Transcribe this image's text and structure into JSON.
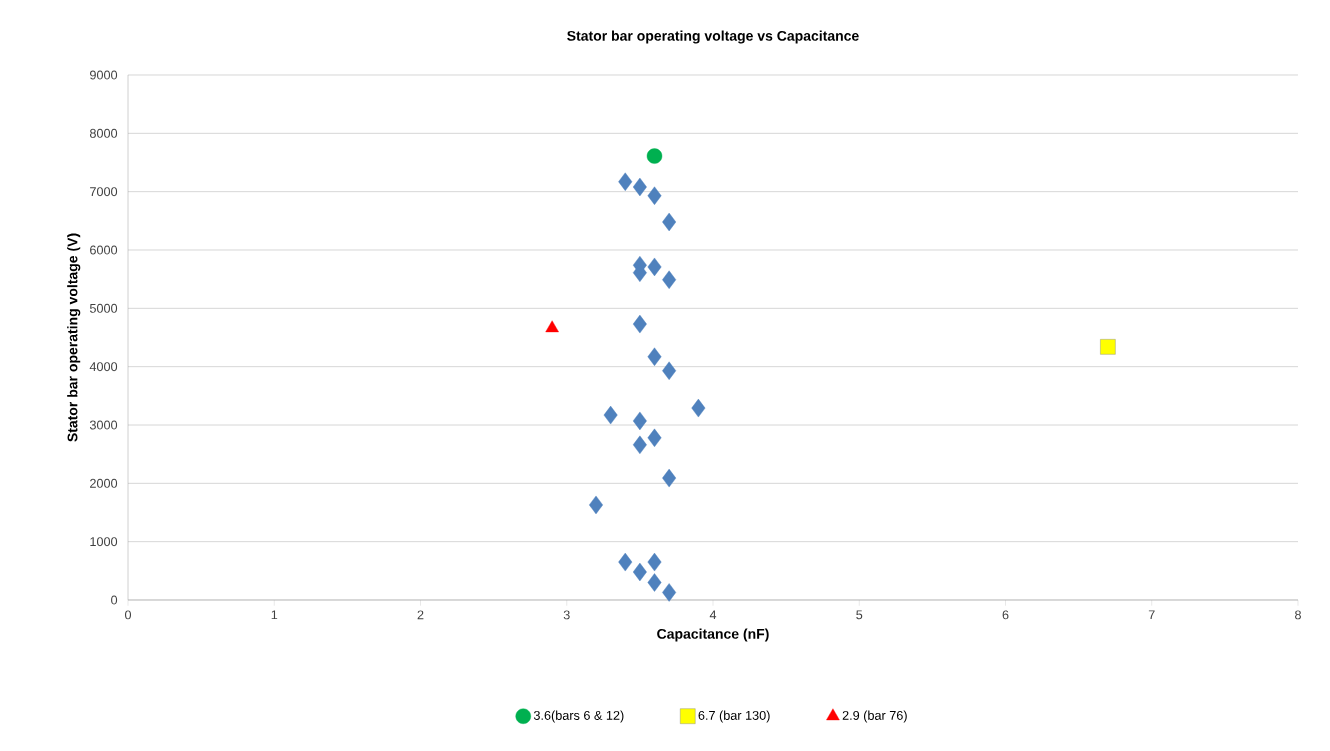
{
  "chart_data": {
    "type": "scatter",
    "title": "Stator bar operating voltage vs Capacitance",
    "xlabel": "Capacitance (nF)",
    "ylabel": "Stator bar operating voltage (V)",
    "xlim": [
      0,
      8
    ],
    "ylim": [
      0,
      9000
    ],
    "xticks": [
      0,
      1,
      2,
      3,
      4,
      5,
      6,
      7,
      8
    ],
    "yticks": [
      0,
      1000,
      2000,
      3000,
      4000,
      5000,
      6000,
      7000,
      8000,
      9000
    ],
    "grid": "y",
    "legend": "bottom",
    "series": [
      {
        "color": "#4f81bd",
        "marker": "diamond",
        "x": [
          3.4,
          3.5,
          3.6,
          3.7,
          3.5,
          3.6,
          3.5,
          3.7,
          3.5,
          3.6,
          3.7,
          3.3,
          3.9,
          3.5,
          3.6,
          3.5,
          3.7,
          3.2,
          3.4,
          3.6,
          3.5,
          3.6,
          3.7
        ],
        "values": [
          7170,
          7080,
          6930,
          6480,
          5740,
          5710,
          5610,
          5490,
          4730,
          4170,
          3930,
          3170,
          3290,
          3070,
          2780,
          2660,
          2090,
          1630,
          650,
          650,
          480,
          300,
          130
        ]
      },
      {
        "name": "3.6(bars 6 & 12)",
        "color": "#00b050",
        "marker": "circle",
        "x": [
          3.6
        ],
        "values": [
          7610
        ]
      },
      {
        "name": "6.7 (bar 130)",
        "color": "#ffff00",
        "marker": "square",
        "x": [
          6.7
        ],
        "values": [
          4340
        ]
      },
      {
        "name": "2.9 (bar 76)",
        "color": "#ff0000",
        "marker": "triangle",
        "x": [
          2.9
        ],
        "values": [
          4660
        ]
      }
    ]
  }
}
